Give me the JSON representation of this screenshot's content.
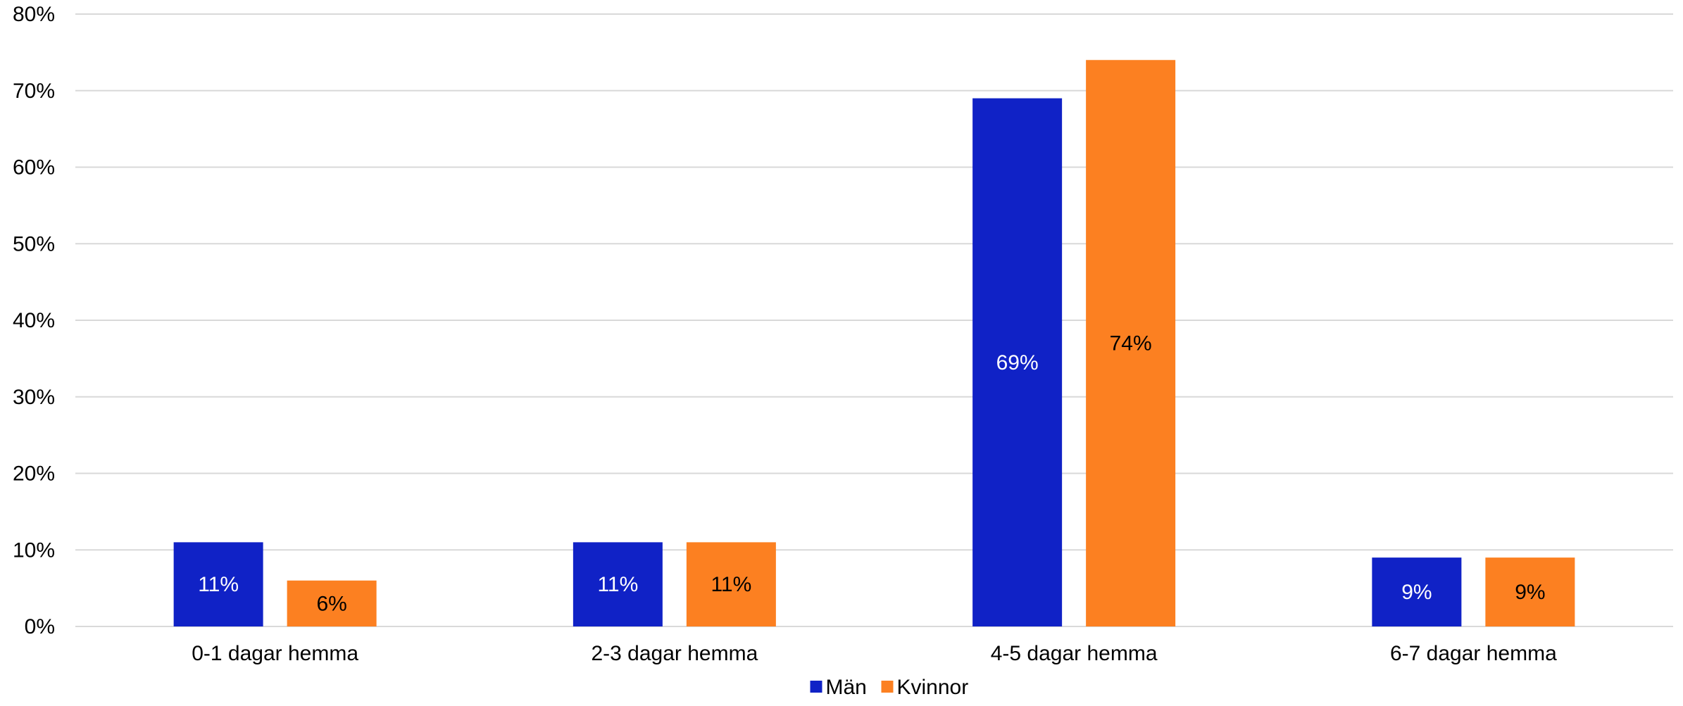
{
  "chart_data": {
    "type": "bar",
    "categories": [
      "0-1 dagar hemma",
      "2-3 dagar hemma",
      "4-5 dagar hemma",
      "6-7 dagar hemma"
    ],
    "series": [
      {
        "name": "Män",
        "values": [
          11,
          11,
          69,
          9
        ],
        "labels": [
          "11%",
          "11%",
          "69%",
          "9%"
        ],
        "color": "#1022c6",
        "label_color": "#ffffff"
      },
      {
        "name": "Kvinnor",
        "values": [
          6,
          11,
          74,
          9
        ],
        "labels": [
          "6%",
          "11%",
          "74%",
          "9%"
        ],
        "color": "#fc8021",
        "label_color": "#000000"
      }
    ],
    "yticks": [
      0,
      10,
      20,
      30,
      40,
      50,
      60,
      70,
      80
    ],
    "ytick_labels": [
      "0%",
      "10%",
      "20%",
      "30%",
      "40%",
      "50%",
      "60%",
      "70%",
      "80%"
    ],
    "ylim": [
      0,
      80
    ],
    "grid": true,
    "grid_color": "#d9d9d9",
    "legend_position": "bottom-center"
  }
}
